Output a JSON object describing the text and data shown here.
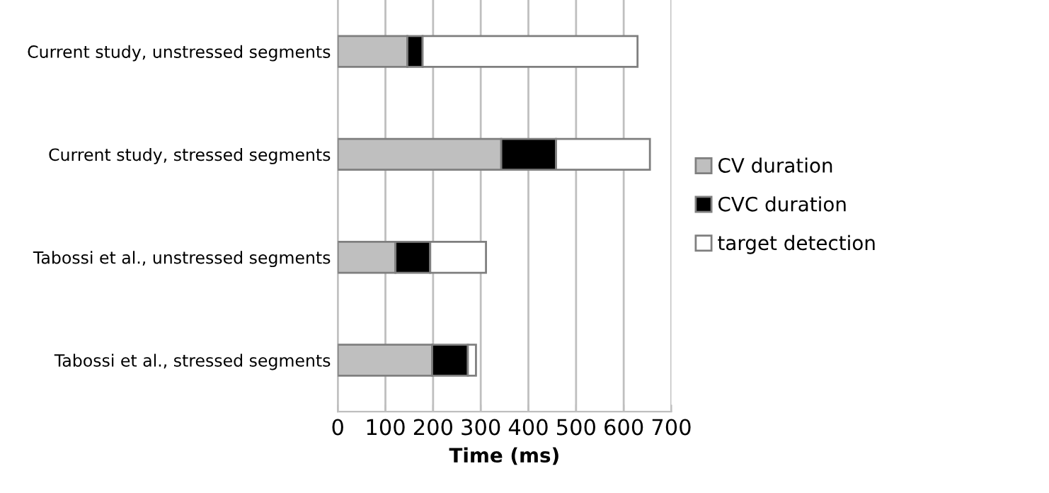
{
  "chart_data": {
    "type": "bar",
    "orientation": "horizontal",
    "stacked": true,
    "xlabel": "Time (ms)",
    "categories": [
      "Current study, unstressed segments",
      "Current study, stressed segments",
      "Tabossi et al., unstressed segments",
      "Tabossi et al., stressed segments"
    ],
    "series": [
      {
        "name": "CV duration",
        "color": "#bfbfbf",
        "values": [
          146,
          343,
          121,
          198
        ]
      },
      {
        "name": "CVC duration",
        "color": "#000000",
        "values": [
          32,
          115,
          73,
          75
        ]
      },
      {
        "name": "target detection",
        "color": "#ffffff",
        "values": [
          451,
          197,
          117,
          17
        ]
      }
    ],
    "xlim": [
      0,
      700
    ],
    "xticks": [
      0,
      100,
      200,
      300,
      400,
      500,
      600,
      700
    ],
    "grid": "x",
    "legend": "right"
  }
}
